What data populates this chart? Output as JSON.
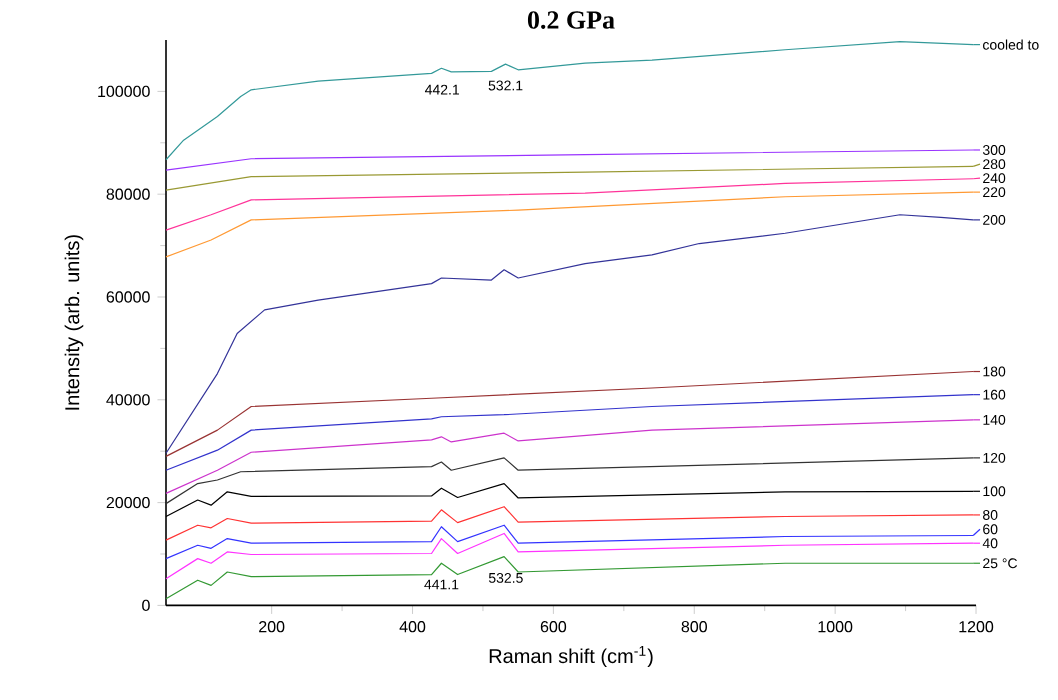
{
  "chart_data": {
    "type": "line",
    "title": "0.2  GPa",
    "xlabel": "Raman shift (cm$^{-1}$)",
    "ylabel": "Intensity (arb. units)",
    "legend": "right",
    "xlim": [
      50,
      1200
    ],
    "xticks": [
      200,
      400,
      600,
      800,
      1000,
      1200
    ],
    "ylim": [
      0,
      110000
    ],
    "yticks": [
      0,
      20000,
      40000,
      60000,
      80000,
      100000
    ],
    "annotations": [
      {
        "text": "442.1",
        "x": 442.1,
        "y": 104500
      },
      {
        "text": "532.1",
        "x": 532.1,
        "y": 105300
      },
      {
        "text": "441.1",
        "x": 441.1,
        "y": 8200
      },
      {
        "text": "532.5",
        "x": 532.5,
        "y": 9500
      }
    ],
    "series": [
      {
        "name": "cooled to",
        "color": "#339999",
        "x": [
          50,
          75,
          123,
          156,
          171,
          266,
          427,
          441,
          455,
          512,
          532,
          550,
          645,
          740,
          929,
          1092,
          1196
        ],
        "values": [
          86700,
          90500,
          95100,
          99000,
          100300,
          102000,
          103500,
          104500,
          103800,
          103900,
          105300,
          104200,
          105500,
          106100,
          108100,
          109700,
          109100
        ]
      },
      {
        "name": "300",
        "color": "#9933ff",
        "x": [
          50,
          171,
          645,
          1196
        ],
        "values": [
          84700,
          86900,
          87700,
          88600
        ]
      },
      {
        "name": "280",
        "color": "#999933",
        "x": [
          50,
          171,
          645,
          1196
        ],
        "values": [
          80800,
          83400,
          84300,
          85400
        ]
      },
      {
        "name": "240",
        "color": "#ff3399",
        "x": [
          50,
          114,
          171,
          645,
          929,
          1196
        ],
        "values": [
          73000,
          76000,
          78900,
          80200,
          82100,
          83000
        ]
      },
      {
        "name": "220",
        "color": "#ff9933",
        "x": [
          50,
          114,
          171,
          550,
          929,
          1196
        ],
        "values": [
          67800,
          71100,
          75000,
          76900,
          79500,
          80400
        ]
      },
      {
        "name": "200",
        "color": "#333399",
        "x": [
          50,
          123,
          151,
          190,
          266,
          427,
          441,
          512,
          530,
          550,
          645,
          740,
          807,
          929,
          1092,
          1150,
          1196
        ],
        "values": [
          29600,
          45100,
          52900,
          57500,
          59400,
          62600,
          63700,
          63300,
          65300,
          63700,
          66500,
          68200,
          70400,
          72400,
          76000,
          75500,
          75000
        ]
      },
      {
        "name": "180",
        "color": "#993333",
        "x": [
          50,
          123,
          171,
          427,
          740,
          1196
        ],
        "values": [
          29000,
          34100,
          38700,
          40300,
          42300,
          45500
        ]
      },
      {
        "name": "160",
        "color": "#3333cc",
        "x": [
          50,
          123,
          171,
          427,
          441,
          530,
          740,
          1196
        ],
        "values": [
          26300,
          30200,
          34100,
          36300,
          36700,
          37100,
          38700,
          41000
        ]
      },
      {
        "name": "140",
        "color": "#cc33cc",
        "x": [
          50,
          123,
          171,
          427,
          441,
          455,
          530,
          550,
          740,
          1196
        ],
        "values": [
          21800,
          26300,
          29800,
          32200,
          32800,
          31800,
          33500,
          32000,
          34100,
          36100
        ]
      },
      {
        "name": "120",
        "color": "#333333",
        "x": [
          50,
          95,
          123,
          156,
          427,
          441,
          455,
          530,
          550,
          1196
        ],
        "values": [
          19800,
          23700,
          24400,
          26000,
          27000,
          27900,
          26300,
          28700,
          26300,
          28700
        ]
      },
      {
        "name": "100",
        "color": "#000000",
        "x": [
          50,
          95,
          114,
          137,
          171,
          427,
          441,
          464,
          530,
          550,
          929,
          1196
        ],
        "values": [
          17300,
          20500,
          19500,
          22100,
          21200,
          21300,
          22800,
          21000,
          23700,
          20900,
          22100,
          22200
        ]
      },
      {
        "name": "80",
        "color": "#ff3333",
        "x": [
          50,
          95,
          114,
          137,
          171,
          427,
          441,
          464,
          530,
          550,
          929,
          1196
        ],
        "values": [
          12700,
          15600,
          15100,
          16900,
          16000,
          16400,
          18600,
          16100,
          19200,
          16200,
          17300,
          17600
        ]
      },
      {
        "name": "60",
        "color": "#3333ff",
        "x": [
          50,
          95,
          114,
          137,
          171,
          427,
          441,
          464,
          530,
          550,
          929,
          1196
        ],
        "values": [
          9100,
          11700,
          11100,
          13000,
          12100,
          12400,
          15300,
          12400,
          15600,
          12100,
          13400,
          13600
        ]
      },
      {
        "name": "40",
        "color": "#ff33ff",
        "x": [
          50,
          95,
          114,
          137,
          171,
          427,
          441,
          464,
          530,
          550,
          929,
          1196
        ],
        "values": [
          5200,
          9100,
          8200,
          10400,
          9900,
          10100,
          13000,
          10100,
          14000,
          10400,
          11700,
          12100
        ]
      },
      {
        "name": "25 °C",
        "color": "#339933",
        "x": [
          50,
          95,
          114,
          137,
          171,
          427,
          441,
          464,
          530,
          550,
          929,
          1196
        ],
        "values": [
          1300,
          4900,
          3900,
          6500,
          5600,
          6000,
          8200,
          6000,
          9500,
          6500,
          8200,
          8200
        ]
      }
    ]
  }
}
